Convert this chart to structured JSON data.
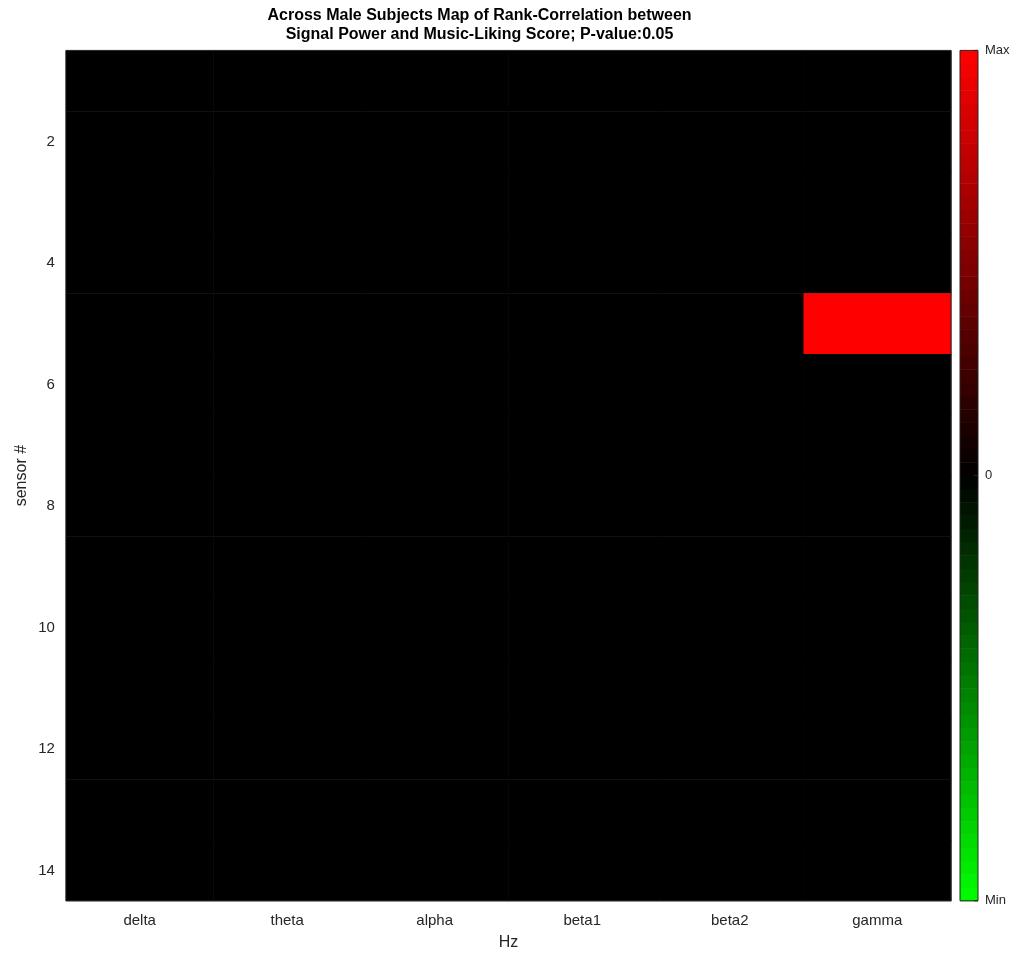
{
  "chart_data": {
    "type": "heatmap",
    "title": "Across Male Subjects Map of Rank-Correlation between\nSignal Power and Music-Liking Score; P-value:0.05",
    "xlabel": "Hz",
    "ylabel": "sensor #",
    "categories": [
      "delta",
      "theta",
      "alpha",
      "beta1",
      "beta2",
      "gamma"
    ],
    "y_categories": [
      null,
      "2",
      null,
      "4",
      null,
      "6",
      null,
      "8",
      null,
      "10",
      null,
      "12",
      null,
      "14"
    ],
    "cells": [
      [
        0,
        0,
        0,
        0,
        0,
        0
      ],
      [
        0,
        0,
        0,
        0,
        0,
        0
      ],
      [
        0,
        0,
        0,
        0,
        0,
        0
      ],
      [
        0,
        0,
        0,
        0,
        0,
        0
      ],
      [
        0,
        0,
        0,
        0,
        0,
        1
      ],
      [
        0,
        0,
        0,
        0,
        0,
        0
      ],
      [
        0,
        0,
        0,
        0,
        0,
        0
      ],
      [
        0,
        0,
        0,
        0,
        0,
        0
      ],
      [
        0,
        0,
        0,
        0,
        0,
        0
      ],
      [
        0,
        0,
        0,
        0,
        0,
        0
      ],
      [
        0,
        0,
        0,
        0,
        0,
        0
      ],
      [
        0,
        0,
        0,
        0,
        0,
        0
      ],
      [
        0,
        0,
        0,
        0,
        0,
        0
      ],
      [
        0,
        0,
        0,
        0,
        0,
        0
      ]
    ],
    "clim": [
      -1,
      1
    ],
    "cticks": [
      {
        "value": -1,
        "label": "Min"
      },
      {
        "value": 0,
        "label": "0"
      },
      {
        "value": 1,
        "label": "Max"
      }
    ]
  }
}
